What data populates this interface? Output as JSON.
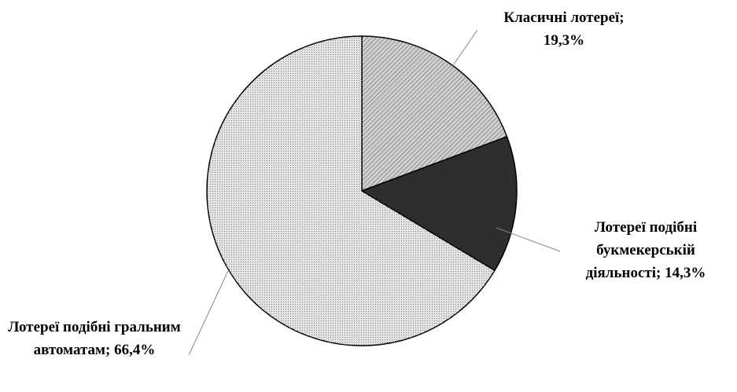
{
  "chart_data": {
    "type": "pie",
    "categories": [
      "Класичні лотереї;",
      "Лотереї подібні букмекерській діяльності;",
      "Лотереї подібні гральним автоматам;"
    ],
    "values": [
      19.3,
      14.3,
      66.4
    ],
    "value_labels": [
      "19,3%",
      "14,3%",
      "66,4%"
    ],
    "colors": [
      "#cfcfcf",
      "#2e2e2e",
      "#e2e2e2"
    ]
  }
}
